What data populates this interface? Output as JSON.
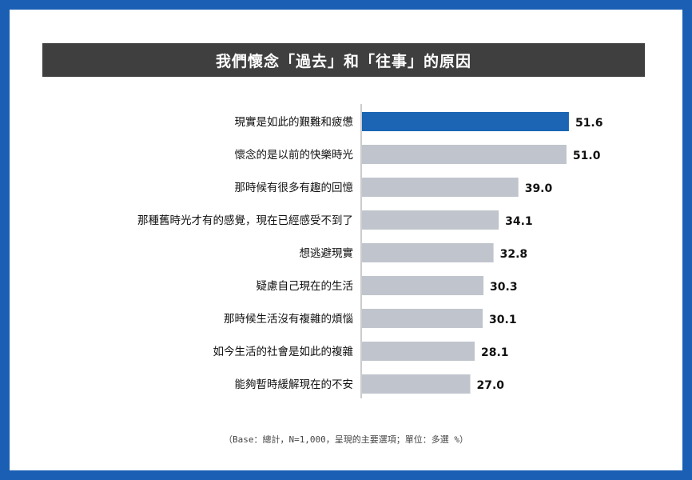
{
  "chart_data": {
    "type": "bar",
    "orientation": "horizontal",
    "title": "我們懷念「過去」和「往事」的原因",
    "categories": [
      "現實是如此的艱難和疲憊",
      "懷念的是以前的快樂時光",
      "那時候有很多有趣的回憶",
      "那種舊時光才有的感覺，現在已經感受不到了",
      "想逃避現實",
      "疑慮自己現在的生活",
      "那時候生活沒有複雜的煩惱",
      "如今生活的社會是如此的複雜",
      "能夠暫時緩解現在的不安"
    ],
    "values": [
      51.6,
      51.0,
      39.0,
      34.1,
      32.8,
      30.3,
      30.1,
      28.1,
      27.0
    ],
    "value_labels": [
      "51.6",
      "51.0",
      "39.0",
      "34.1",
      "32.8",
      "30.3",
      "30.1",
      "28.1",
      "27.0"
    ],
    "highlight_index": 0,
    "xlim": [
      0,
      55
    ],
    "grid": false,
    "note": "（Base：總計，N=1,000，呈現的主要選項；單位：多選 %）"
  },
  "colors": {
    "frame": "#1a5fb4",
    "title_bg": "#3f3f3f",
    "highlight_bar": "#1b65b4",
    "bar": "#c0c5cd",
    "axis": "#9a9a9a",
    "label_text": "#111111"
  }
}
